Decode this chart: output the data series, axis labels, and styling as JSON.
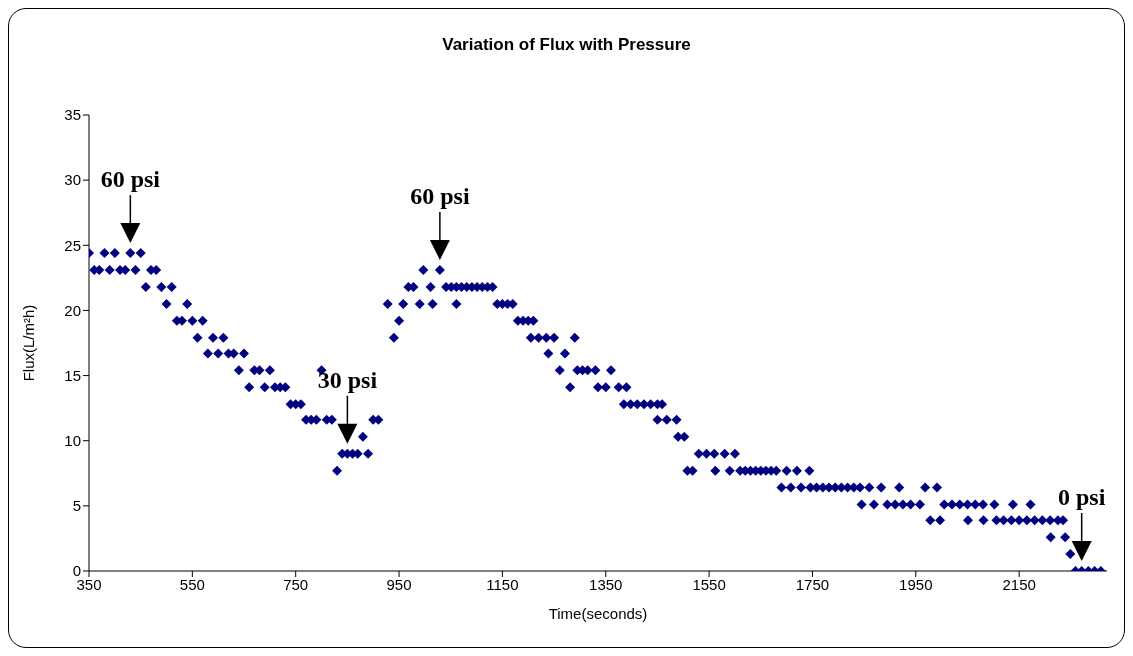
{
  "chart_data": {
    "type": "scatter",
    "title": "Variation of Flux with Pressure",
    "xlabel": "Time(seconds)",
    "ylabel": "Flux(L/m²h)",
    "xlim": [
      350,
      2320
    ],
    "xticks": [
      350,
      550,
      750,
      950,
      1150,
      1350,
      1550,
      1750,
      1950,
      2150
    ],
    "ylim": [
      0,
      35
    ],
    "yticks": [
      0,
      5,
      10,
      15,
      20,
      25,
      30,
      35
    ],
    "marker": "diamond",
    "series": [
      {
        "color": "#000080",
        "x": [
          350,
          360,
          370,
          380,
          390,
          400,
          410,
          420,
          430,
          440,
          450,
          460,
          470,
          480,
          490,
          500,
          510,
          520,
          530,
          540,
          550,
          560,
          570,
          580,
          590,
          600,
          610,
          620,
          630,
          640,
          650,
          660,
          670,
          680,
          690,
          700,
          710,
          720,
          730,
          740,
          750,
          760,
          770,
          780,
          790,
          800,
          810,
          820,
          830,
          840,
          850,
          860,
          870,
          880,
          890,
          900,
          910,
          928,
          940,
          950,
          958,
          968,
          978,
          990,
          997,
          1011,
          1015,
          1029,
          1041,
          1051,
          1061,
          1061,
          1071,
          1081,
          1091,
          1101,
          1111,
          1121,
          1131,
          1140,
          1150,
          1160,
          1170,
          1180,
          1190,
          1200,
          1210,
          1205,
          1220,
          1235,
          1250,
          1290,
          1239,
          1271,
          1261,
          1281,
          1295,
          1305,
          1315,
          1330,
          1335,
          1350,
          1375,
          1390,
          1360,
          1385,
          1398,
          1411,
          1424,
          1437,
          1450,
          1459,
          1450,
          1468,
          1487,
          1490,
          1502,
          1508,
          1518,
          1530,
          1545,
          1560,
          1580,
          1600,
          1562,
          1590,
          1610,
          1620,
          1630,
          1640,
          1650,
          1660,
          1670,
          1680,
          1700,
          1720,
          1744,
          1690,
          1708,
          1728,
          1746,
          1758,
          1770,
          1782,
          1794,
          1806,
          1818,
          1830,
          1842,
          1860,
          1883,
          1918,
          1968,
          1991,
          1845,
          1869,
          1895,
          1910,
          1925,
          1940,
          1958,
          2005,
          2020,
          2035,
          2050,
          2065,
          2080,
          2102,
          2138,
          2172,
          1978,
          1997,
          2051,
          2081,
          2106,
          2120,
          2135,
          2150,
          2165,
          2180,
          2195,
          2210,
          2225,
          2235,
          2211,
          2239,
          2249,
          2259,
          2271,
          2284,
          2296,
          2308
        ],
        "values": [
          24.4,
          23.1,
          23.1,
          24.4,
          23.1,
          24.4,
          23.1,
          23.1,
          24.4,
          23.1,
          24.4,
          21.8,
          23.1,
          23.1,
          21.8,
          20.5,
          21.8,
          19.2,
          19.2,
          20.5,
          19.2,
          17.9,
          19.2,
          16.7,
          17.9,
          16.7,
          17.9,
          16.7,
          16.7,
          15.4,
          16.7,
          14.1,
          15.4,
          15.4,
          14.1,
          15.4,
          14.1,
          14.1,
          14.1,
          12.8,
          12.8,
          12.8,
          11.6,
          11.6,
          11.6,
          15.4,
          11.6,
          11.6,
          7.7,
          9.0,
          9.0,
          9.0,
          9.0,
          10.3,
          9.0,
          11.6,
          11.6,
          20.5,
          17.9,
          19.2,
          20.5,
          21.8,
          21.8,
          20.5,
          23.1,
          21.8,
          20.5,
          23.1,
          21.8,
          21.8,
          21.8,
          20.5,
          21.8,
          21.8,
          21.8,
          21.8,
          21.8,
          21.8,
          21.8,
          20.5,
          20.5,
          20.5,
          20.5,
          19.2,
          19.2,
          19.2,
          19.2,
          17.9,
          17.9,
          17.9,
          17.9,
          17.9,
          16.7,
          16.7,
          15.4,
          14.1,
          15.4,
          15.4,
          15.4,
          15.4,
          14.1,
          14.1,
          14.1,
          14.1,
          15.4,
          12.8,
          12.8,
          12.8,
          12.8,
          12.8,
          12.8,
          12.8,
          11.6,
          11.6,
          11.6,
          10.3,
          10.3,
          7.7,
          7.7,
          9.0,
          9.0,
          9.0,
          9.0,
          9.0,
          7.7,
          7.7,
          7.7,
          7.7,
          7.7,
          7.7,
          7.7,
          7.7,
          7.7,
          7.7,
          7.7,
          7.7,
          7.7,
          6.4,
          6.4,
          6.4,
          6.4,
          6.4,
          6.4,
          6.4,
          6.4,
          6.4,
          6.4,
          6.4,
          6.4,
          6.4,
          6.4,
          6.4,
          6.4,
          6.4,
          5.1,
          5.1,
          5.1,
          5.1,
          5.1,
          5.1,
          5.1,
          5.1,
          5.1,
          5.1,
          5.1,
          5.1,
          5.1,
          5.1,
          5.1,
          5.1,
          3.9,
          3.9,
          3.9,
          3.9,
          3.9,
          3.9,
          3.9,
          3.9,
          3.9,
          3.9,
          3.9,
          3.9,
          3.9,
          3.9,
          2.6,
          2.6,
          1.3,
          0,
          0,
          0,
          0,
          0
        ]
      }
    ],
    "annotations": [
      {
        "text": "60 psi",
        "x": 430,
        "y": 24.4
      },
      {
        "text": "30 psi",
        "x": 850,
        "y": 9.0
      },
      {
        "text": "60 psi",
        "x": 1029,
        "y": 23.1
      },
      {
        "text": "0 psi",
        "x": 2271,
        "y": 0
      }
    ]
  }
}
